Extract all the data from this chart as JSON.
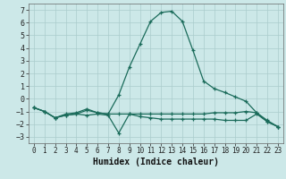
{
  "xlabel": "Humidex (Indice chaleur)",
  "background_color": "#cce8e8",
  "grid_color": "#aacccc",
  "line_color": "#1a6b5a",
  "xlim": [
    -0.5,
    23.5
  ],
  "ylim": [
    -3.5,
    7.5
  ],
  "yticks": [
    -3,
    -2,
    -1,
    0,
    1,
    2,
    3,
    4,
    5,
    6,
    7
  ],
  "xticks": [
    0,
    1,
    2,
    3,
    4,
    5,
    6,
    7,
    8,
    9,
    10,
    11,
    12,
    13,
    14,
    15,
    16,
    17,
    18,
    19,
    20,
    21,
    22,
    23
  ],
  "lines": [
    {
      "x": [
        0,
        1,
        2,
        3,
        4,
        5,
        6,
        7,
        8,
        9,
        10,
        11,
        12,
        13,
        14,
        15,
        16,
        17,
        18,
        19,
        20,
        21,
        22,
        23
      ],
      "y": [
        -0.7,
        -1.0,
        -1.5,
        -1.2,
        -1.1,
        -0.8,
        -1.1,
        -1.2,
        0.3,
        2.5,
        4.3,
        6.1,
        6.8,
        6.9,
        6.1,
        3.8,
        1.4,
        0.8,
        0.5,
        0.15,
        -0.2,
        -1.1,
        -1.7,
        -2.2
      ]
    },
    {
      "x": [
        0,
        1,
        2,
        3,
        4,
        5,
        6,
        7,
        8,
        9,
        10,
        11,
        12,
        13,
        14,
        15,
        16,
        17,
        18,
        19,
        20,
        21,
        22,
        23
      ],
      "y": [
        -0.7,
        -1.0,
        -1.5,
        -1.3,
        -1.2,
        -0.9,
        -1.1,
        -1.2,
        -1.2,
        -1.2,
        -1.2,
        -1.2,
        -1.2,
        -1.2,
        -1.2,
        -1.2,
        -1.2,
        -1.1,
        -1.1,
        -1.1,
        -1.0,
        -1.1,
        -1.8,
        -2.2
      ]
    },
    {
      "x": [
        0,
        1,
        2,
        3,
        4,
        5,
        6,
        7,
        8,
        9,
        10,
        11,
        12,
        13,
        14,
        15,
        16,
        17,
        18,
        19,
        20,
        21,
        22,
        23
      ],
      "y": [
        -0.7,
        -1.0,
        -1.5,
        -1.3,
        -1.2,
        -1.3,
        -1.2,
        -1.3,
        -2.7,
        -1.2,
        -1.4,
        -1.5,
        -1.6,
        -1.6,
        -1.6,
        -1.6,
        -1.6,
        -1.6,
        -1.7,
        -1.7,
        -1.7,
        -1.2,
        -1.8,
        -2.2
      ]
    }
  ]
}
